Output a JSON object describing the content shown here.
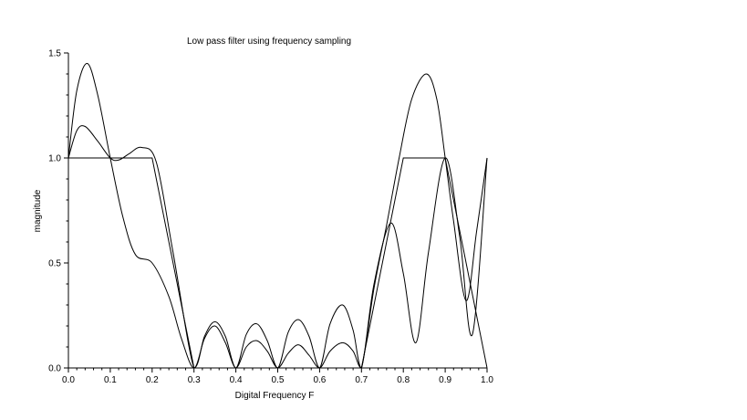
{
  "chart_data": {
    "type": "line",
    "title": "Low pass filter using frequency sampling",
    "xlabel": "Digital Frequency F",
    "ylabel": "magnitude",
    "xlim": [
      0,
      1
    ],
    "ylim": [
      0,
      1.5
    ],
    "xticks": [
      "0.0",
      "0.1",
      "0.2",
      "0.3",
      "0.4",
      "0.5",
      "0.6",
      "0.7",
      "0.8",
      "0.9",
      "1.0"
    ],
    "yticks": [
      "0.0",
      "0.5",
      "1.0",
      "1.5"
    ],
    "grid": false,
    "line_color": "#000000",
    "series": [
      {
        "x": [
          0,
          0.2,
          0.3,
          0.7,
          0.8,
          0.9,
          1.0
        ],
        "y": [
          1,
          1,
          0,
          0,
          1,
          1,
          0
        ]
      },
      {
        "x": [
          0,
          0.02,
          0.045,
          0.07,
          0.1,
          0.13,
          0.16,
          0.2,
          0.24,
          0.27,
          0.3,
          0.325,
          0.35,
          0.375,
          0.4,
          0.425,
          0.45,
          0.475,
          0.5,
          0.525,
          0.55,
          0.575,
          0.6,
          0.625,
          0.655,
          0.68,
          0.7,
          0.73,
          0.76,
          0.79,
          0.82,
          0.855,
          0.88,
          0.9,
          0.92,
          0.95,
          0.975,
          1.0
        ],
        "y": [
          1.0,
          1.32,
          1.45,
          1.3,
          1.0,
          0.72,
          0.54,
          0.5,
          0.34,
          0.14,
          0.0,
          0.14,
          0.2,
          0.12,
          0.0,
          0.1,
          0.13,
          0.08,
          0.0,
          0.07,
          0.11,
          0.06,
          0.0,
          0.08,
          0.12,
          0.08,
          0.0,
          0.38,
          0.68,
          1.0,
          1.28,
          1.4,
          1.28,
          1.0,
          0.7,
          0.32,
          0.65,
          1.0
        ]
      },
      {
        "x": [
          0,
          0.02,
          0.04,
          0.07,
          0.1,
          0.12,
          0.145,
          0.175,
          0.21,
          0.25,
          0.3,
          0.325,
          0.35,
          0.375,
          0.4,
          0.425,
          0.45,
          0.475,
          0.5,
          0.525,
          0.55,
          0.575,
          0.6,
          0.625,
          0.655,
          0.68,
          0.7,
          0.73,
          0.77,
          0.8,
          0.83,
          0.86,
          0.9,
          0.935,
          0.965,
          1.0
        ],
        "y": [
          1.0,
          1.13,
          1.15,
          1.08,
          1.0,
          0.99,
          1.02,
          1.05,
          0.98,
          0.55,
          0.0,
          0.15,
          0.22,
          0.15,
          0.0,
          0.16,
          0.21,
          0.13,
          0.0,
          0.17,
          0.23,
          0.15,
          0.0,
          0.21,
          0.3,
          0.18,
          0.0,
          0.4,
          0.69,
          0.45,
          0.12,
          0.55,
          1.0,
          0.62,
          0.16,
          1.0
        ]
      }
    ]
  }
}
